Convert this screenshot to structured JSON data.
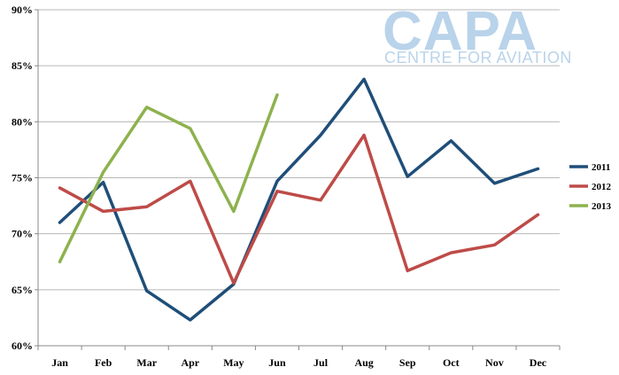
{
  "logo": {
    "main": "CAPA",
    "sub": "CENTRE FOR AVIATION"
  },
  "chart_data": {
    "type": "line",
    "title": "",
    "xlabel": "",
    "ylabel": "",
    "categories": [
      "Jan",
      "Feb",
      "Mar",
      "Apr",
      "May",
      "Jun",
      "Jul",
      "Aug",
      "Sep",
      "Oct",
      "Nov",
      "Dec"
    ],
    "y_ticks": [
      "60%",
      "65%",
      "70%",
      "75%",
      "80%",
      "85%",
      "90%"
    ],
    "y_tick_values": [
      60,
      65,
      70,
      75,
      80,
      85,
      90
    ],
    "ylim": [
      60,
      90
    ],
    "grid": true,
    "legend_position": "right",
    "series": [
      {
        "name": "2011",
        "color": "#1f4e79",
        "values": [
          71.0,
          74.6,
          64.9,
          62.3,
          65.5,
          74.7,
          78.8,
          83.8,
          75.1,
          78.3,
          74.5,
          75.8
        ]
      },
      {
        "name": "2012",
        "color": "#be4b48",
        "values": [
          74.1,
          72.0,
          72.4,
          74.7,
          65.6,
          73.8,
          73.0,
          78.8,
          66.7,
          68.3,
          69.0,
          71.7
        ]
      },
      {
        "name": "2013",
        "color": "#8db24e",
        "values": [
          67.5,
          75.5,
          81.3,
          79.4,
          72.0,
          82.4,
          null,
          null,
          null,
          null,
          null,
          null
        ]
      }
    ]
  }
}
